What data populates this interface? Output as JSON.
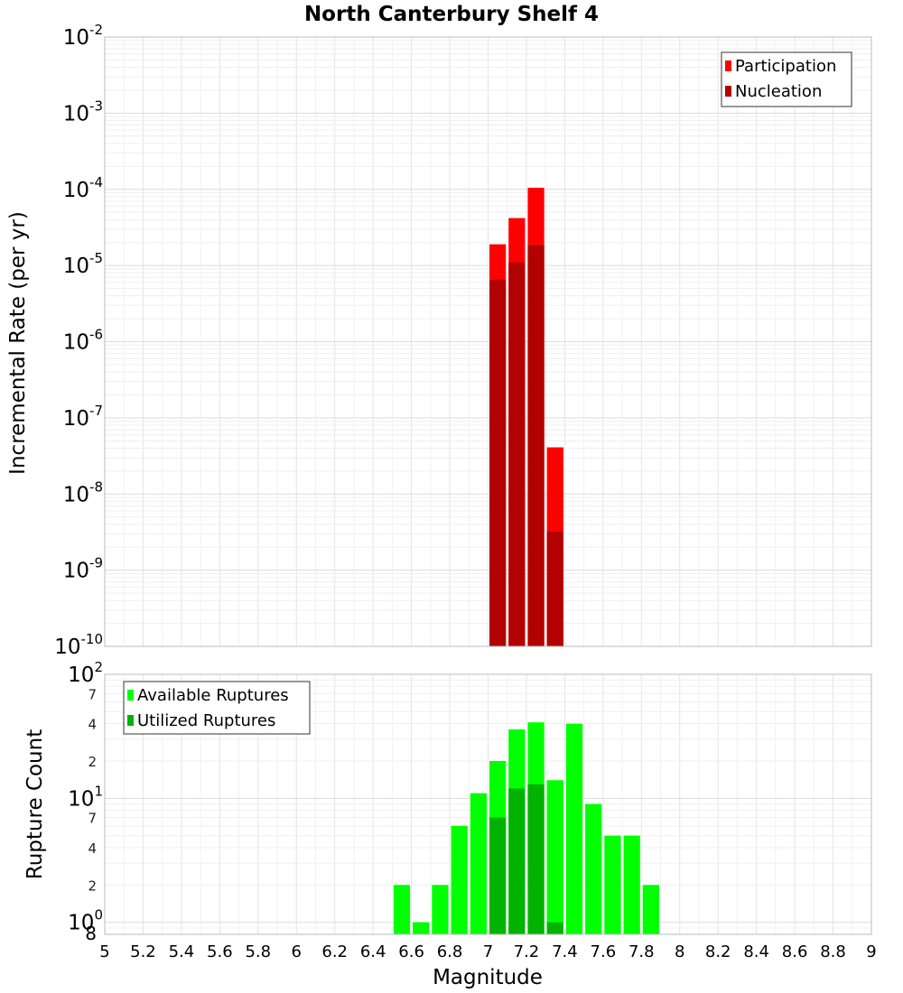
{
  "chart_data": [
    {
      "type": "bar",
      "title": "North Canterbury Shelf 4",
      "xlabel": "",
      "ylabel": "Incremental Rate (per yr)",
      "yscale": "log",
      "ylim_exp": [
        -10,
        -2
      ],
      "xlim": [
        5,
        9
      ],
      "bin_width": 0.1,
      "legend_position": "top-right",
      "series": [
        {
          "name": "Participation",
          "color": "#ff0000",
          "x": [
            7.05,
            7.15,
            7.25,
            7.35
          ],
          "values": [
            1.9e-05,
            4.2e-05,
            0.000105,
            4.1e-08
          ]
        },
        {
          "name": "Nucleation",
          "color": "#b30000",
          "x": [
            7.05,
            7.15,
            7.25,
            7.35
          ],
          "values": [
            6.5e-06,
            1.1e-05,
            1.85e-05,
            3.2e-09
          ]
        }
      ]
    },
    {
      "type": "bar",
      "title": "",
      "xlabel": "Magnitude",
      "ylabel": "Rupture Count",
      "yscale": "log",
      "ylim": [
        0.8,
        100
      ],
      "xlim": [
        5,
        9
      ],
      "bin_width": 0.1,
      "legend_position": "top-left",
      "series": [
        {
          "name": "Available Ruptures",
          "color": "#00ff00",
          "x": [
            6.55,
            6.65,
            6.75,
            6.85,
            6.95,
            7.05,
            7.15,
            7.25,
            7.35,
            7.45,
            7.55,
            7.65,
            7.75,
            7.85
          ],
          "values": [
            2,
            1,
            2,
            6,
            11,
            20,
            36,
            41,
            14,
            40,
            9,
            5,
            5,
            2
          ]
        },
        {
          "name": "Utilized Ruptures",
          "color": "#00b300",
          "x": [
            7.05,
            7.15,
            7.25,
            7.35
          ],
          "values": [
            7,
            12,
            13,
            1
          ]
        }
      ]
    }
  ],
  "axes": {
    "x_ticks": [
      "5",
      "5.2",
      "5.4",
      "5.6",
      "5.8",
      "6",
      "6.2",
      "6.4",
      "6.6",
      "6.8",
      "7",
      "7.2",
      "7.4",
      "7.6",
      "7.8",
      "8",
      "8.2",
      "8.4",
      "8.6",
      "8.8",
      "9"
    ],
    "top_y_ticks": [
      {
        "base": "10",
        "exp": "-2"
      },
      {
        "base": "10",
        "exp": "-3"
      },
      {
        "base": "10",
        "exp": "-4"
      },
      {
        "base": "10",
        "exp": "-5"
      },
      {
        "base": "10",
        "exp": "-6"
      },
      {
        "base": "10",
        "exp": "-7"
      },
      {
        "base": "10",
        "exp": "-8"
      },
      {
        "base": "10",
        "exp": "-9"
      },
      {
        "base": "10",
        "exp": "-10"
      }
    ],
    "bottom_y_major": [
      {
        "base": "10",
        "exp": "2"
      },
      {
        "base": "10",
        "exp": "1"
      },
      {
        "base": "10",
        "exp": "0"
      }
    ],
    "bottom_y_minor": [
      "7",
      "4",
      "2",
      "7",
      "4",
      "2",
      "8"
    ]
  }
}
